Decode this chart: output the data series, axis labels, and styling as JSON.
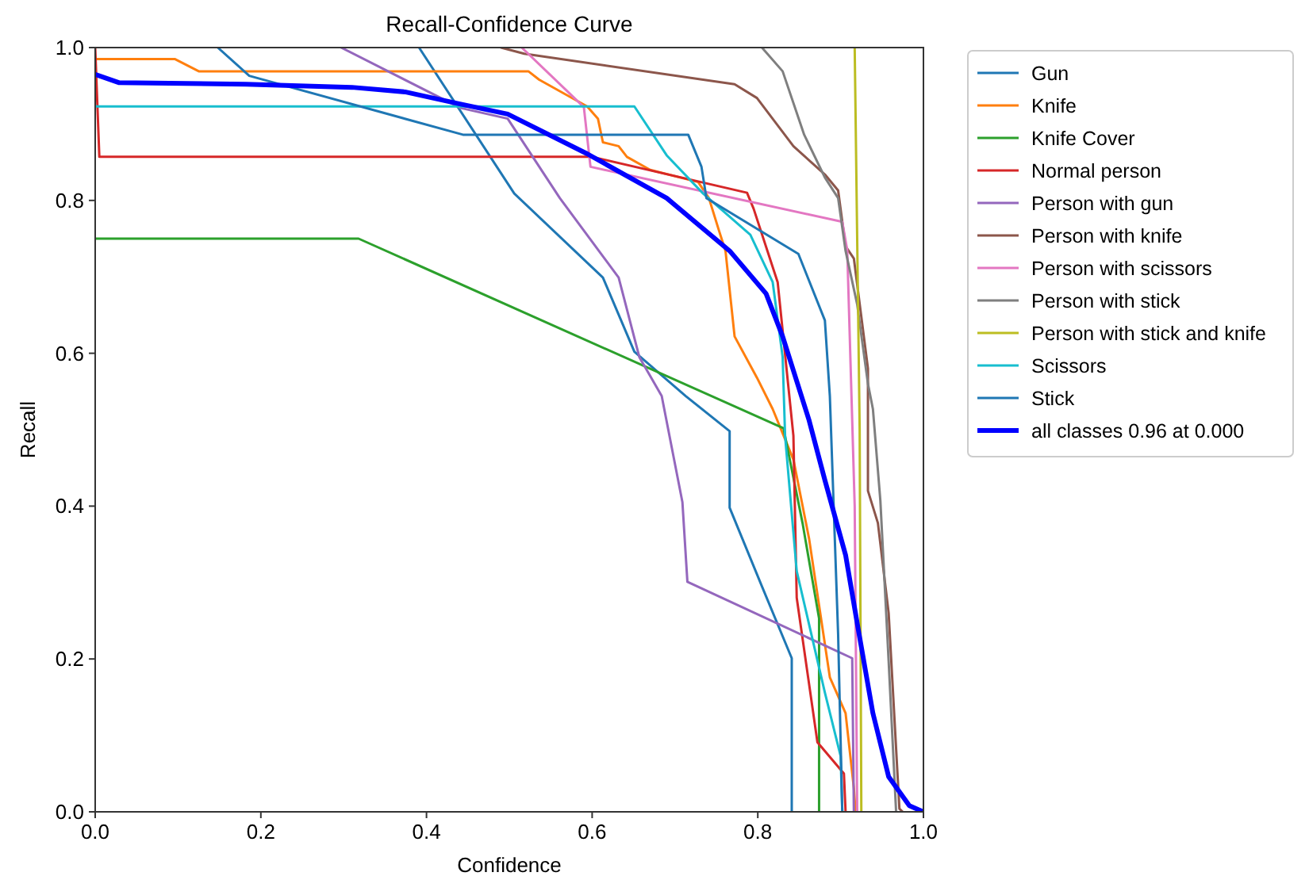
{
  "chart_data": {
    "type": "line",
    "title": "Recall-Confidence Curve",
    "xlabel": "Confidence",
    "ylabel": "Recall",
    "xlim": [
      0,
      1
    ],
    "ylim": [
      0,
      1
    ],
    "xticks": [
      {
        "value": 0,
        "label": "0.0"
      },
      {
        "value": 0.2,
        "label": "0.2"
      },
      {
        "value": 0.4,
        "label": "0.4"
      },
      {
        "value": 0.6,
        "label": "0.6"
      },
      {
        "value": 0.8,
        "label": "0.8"
      },
      {
        "value": 1,
        "label": "1.0"
      }
    ],
    "yticks": [
      {
        "value": 0,
        "label": "0.0"
      },
      {
        "value": 0.2,
        "label": "0.2"
      },
      {
        "value": 0.4,
        "label": "0.4"
      },
      {
        "value": 0.6,
        "label": "0.6"
      },
      {
        "value": 0.8,
        "label": "0.8"
      },
      {
        "value": 1,
        "label": "1.0"
      }
    ],
    "grid": false,
    "legend": "right",
    "marker": "none",
    "line_style": "solid",
    "series": [
      {
        "name": "Gun",
        "color": "#1f77b4",
        "x": [
          0.391,
          0.506,
          0.613,
          0.651,
          0.713,
          0.766,
          0.766,
          0.805,
          0.841,
          0.841
        ],
        "values": [
          1.0,
          0.809,
          0.699,
          0.602,
          0.544,
          0.498,
          0.398,
          0.295,
          0.201,
          0
        ]
      },
      {
        "name": "Knife",
        "color": "#ff7f0e",
        "x": [
          0,
          0.096,
          0.125,
          0.523,
          0.536,
          0.594,
          0.607,
          0.613,
          0.632,
          0.642,
          0.67,
          0.728,
          0.741,
          0.753,
          0.761,
          0.772,
          0.799,
          0.818,
          0.843,
          0.862,
          0.887,
          0.906,
          0.916,
          0.918
        ],
        "values": [
          0.985,
          0.985,
          0.969,
          0.969,
          0.958,
          0.923,
          0.907,
          0.876,
          0.871,
          0.857,
          0.84,
          0.824,
          0.803,
          0.761,
          0.734,
          0.622,
          0.568,
          0.527,
          0.461,
          0.357,
          0.176,
          0.129,
          0.031,
          0
        ]
      },
      {
        "name": "Knife Cover",
        "color": "#2ca02c",
        "x": [
          0,
          0.318,
          0.831,
          0.854,
          0.874,
          0.874
        ],
        "values": [
          0.75,
          0.75,
          0.502,
          0.378,
          0.253,
          0
        ]
      },
      {
        "name": "Normal person",
        "color": "#d62728",
        "x": [
          0,
          0.005,
          0.6,
          0.787,
          0.795,
          0.824,
          0.843,
          0.847,
          0.872,
          0.904,
          0.906
        ],
        "values": [
          1.0,
          0.857,
          0.857,
          0.81,
          0.789,
          0.693,
          0.492,
          0.28,
          0.091,
          0.05,
          0
        ]
      },
      {
        "name": "Person with gun",
        "color": "#9467bd",
        "x": [
          0.297,
          0.441,
          0.498,
          0.561,
          0.632,
          0.657,
          0.684,
          0.709,
          0.715,
          0.914,
          0.916
        ],
        "values": [
          1.0,
          0.921,
          0.907,
          0.803,
          0.699,
          0.595,
          0.544,
          0.405,
          0.301,
          0.201,
          0
        ]
      },
      {
        "name": "Person with knife",
        "color": "#8c564b",
        "x": [
          0.49,
          0.518,
          0.772,
          0.799,
          0.843,
          0.881,
          0.897,
          0.906,
          0.916,
          0.933,
          0.933,
          0.945,
          0.958,
          0.971,
          0.975
        ],
        "values": [
          1.0,
          0.992,
          0.952,
          0.934,
          0.871,
          0.834,
          0.813,
          0.74,
          0.724,
          0.58,
          0.42,
          0.378,
          0.26,
          0.004,
          0
        ]
      },
      {
        "name": "Person with scissors",
        "color": "#e377c2",
        "x": [
          0.515,
          0.59,
          0.598,
          0.902,
          0.908,
          0.917,
          0.92
        ],
        "values": [
          1.0,
          0.922,
          0.844,
          0.772,
          0.735,
          0.4,
          0
        ]
      },
      {
        "name": "Person with stick",
        "color": "#7f7f7f",
        "x": [
          0.805,
          0.83,
          0.856,
          0.881,
          0.897,
          0.906,
          0.92,
          0.933,
          0.939,
          0.948,
          0.958,
          0.967
        ],
        "values": [
          1.0,
          0.969,
          0.886,
          0.83,
          0.803,
          0.734,
          0.664,
          0.56,
          0.527,
          0.407,
          0.197,
          0
        ]
      },
      {
        "name": "Person with stick and knife",
        "color": "#bcbd22",
        "x": [
          0.917,
          0.923,
          0.925
        ],
        "values": [
          1.0,
          0.5,
          0
        ]
      },
      {
        "name": "Scissors",
        "color": "#17becf",
        "x": [
          0,
          0.651,
          0.69,
          0.734,
          0.791,
          0.818,
          0.83,
          0.833,
          0.847,
          0.881,
          0.9,
          0.902
        ],
        "values": [
          0.923,
          0.923,
          0.859,
          0.809,
          0.755,
          0.693,
          0.595,
          0.491,
          0.315,
          0.156,
          0.073,
          0
        ]
      },
      {
        "name": "Stick",
        "color": "#1f77b4",
        "x": [
          0.148,
          0.186,
          0.444,
          0.716,
          0.732,
          0.738,
          0.849,
          0.881,
          0.887,
          0.897,
          0.902
        ],
        "values": [
          1.0,
          0.963,
          0.886,
          0.886,
          0.844,
          0.803,
          0.73,
          0.643,
          0.544,
          0.232,
          0
        ]
      },
      {
        "name": "all classes 0.96 at 0.000",
        "color": "#0000ff",
        "x": [
          0,
          0.029,
          0.182,
          0.31,
          0.374,
          0.437,
          0.498,
          0.594,
          0.69,
          0.766,
          0.81,
          0.83,
          0.862,
          0.881,
          0.906,
          0.92,
          0.939,
          0.958,
          0.983,
          1.0
        ],
        "values": [
          0.965,
          0.954,
          0.952,
          0.948,
          0.942,
          0.927,
          0.913,
          0.861,
          0.803,
          0.734,
          0.678,
          0.622,
          0.512,
          0.434,
          0.336,
          0.247,
          0.129,
          0.046,
          0.008,
          0
        ]
      }
    ]
  }
}
